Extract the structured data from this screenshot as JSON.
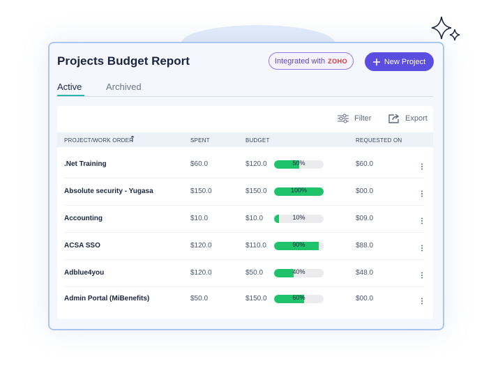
{
  "header": {
    "title": "Projects Budget Report",
    "badge": {
      "text": "Integrated with",
      "logo": "ZOHO"
    },
    "button": "New Project"
  },
  "tabs": [
    "Active",
    "Archived"
  ],
  "toolbar": [
    "Filter",
    "Export"
  ],
  "table": {
    "columns": [
      "PROJECT/WORK ORDER",
      "SPENT",
      "BUDGET",
      "REQUESTED ON"
    ],
    "rows": [
      {
        "name": ".Net Training",
        "spent": "$60.0",
        "budget": "$120.0",
        "progress": 50,
        "progress_label": "50%",
        "requested": "$60.0"
      },
      {
        "name": "Absolute security - Yugasa",
        "spent": "$150.0",
        "budget": "$150.0",
        "progress": 100,
        "progress_label": "100%",
        "requested": "$00.0"
      },
      {
        "name": "Accounting",
        "spent": "$10.0",
        "budget": "$10.0",
        "progress": 10,
        "progress_label": "10%",
        "requested": "$09.0"
      },
      {
        "name": "ACSA SSO",
        "spent": "$120.0",
        "budget": "$110.0",
        "progress": 90,
        "progress_label": "90%",
        "requested": "$88.0"
      },
      {
        "name": "Adblue4you",
        "spent": "$120.0",
        "budget": "$50.0",
        "progress": 40,
        "progress_label": "40%",
        "requested": "$48.0"
      },
      {
        "name": "Admin Portal (MiBenefits)",
        "spent": "$50.0",
        "budget": "$150.0",
        "progress": 60,
        "progress_label": "60%",
        "requested": "$00.0"
      }
    ]
  }
}
